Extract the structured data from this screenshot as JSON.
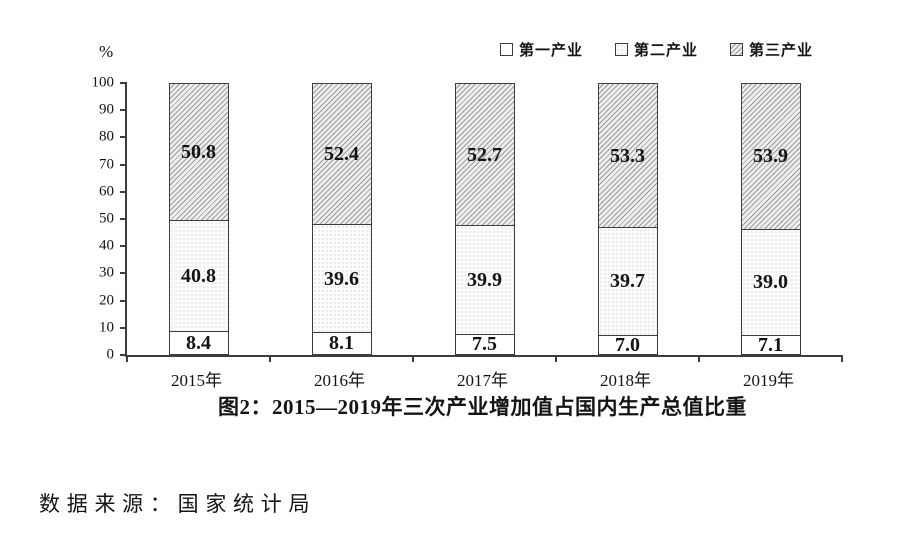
{
  "chart_data": {
    "type": "bar",
    "stacked": true,
    "title": "图2：2015—2019年三次产业增加值占国内生产总值比重",
    "unit_label": "%",
    "categories": [
      "2015年",
      "2016年",
      "2017年",
      "2018年",
      "2019年"
    ],
    "series": [
      {
        "name": "第一产业",
        "pattern": "plain",
        "values": [
          8.4,
          8.1,
          7.5,
          7.0,
          7.1
        ]
      },
      {
        "name": "第二产业",
        "pattern": "dots",
        "values": [
          40.8,
          39.6,
          39.9,
          39.7,
          39.0
        ]
      },
      {
        "name": "第三产业",
        "pattern": "hatch",
        "values": [
          50.8,
          52.4,
          52.7,
          53.3,
          53.9
        ]
      }
    ],
    "ylim": [
      0,
      100
    ],
    "yticks": [
      0,
      10,
      20,
      30,
      40,
      50,
      60,
      70,
      80,
      90,
      100
    ],
    "legend_position": "top-right",
    "grid": false,
    "value_decimals": 1
  },
  "footer": {
    "source_label": "数据来源：国家统计局"
  },
  "colors": {
    "axis": "#3d3d3d",
    "bar_border": "#3d3d3d",
    "text": "#141414",
    "hatch_line": "#9b9b9b",
    "hatch_bg": "#eeeeee",
    "dot_color": "#bdbdbd",
    "dot_bg": "#fcfcfc",
    "plain_bg": "#ffffff",
    "background": "#ffffff"
  }
}
